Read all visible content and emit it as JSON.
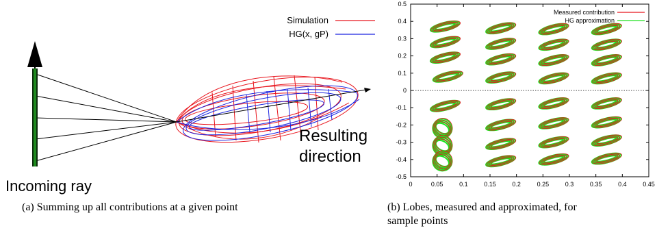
{
  "figure_a": {
    "legend": [
      {
        "label": "Simulation",
        "color": "#e8141c"
      },
      {
        "label": "HG(x, gP)",
        "color": "#1c24e0"
      }
    ],
    "incoming_label": "Incoming ray",
    "resulting_label_line1": "Resulting",
    "resulting_label_line2": "direction",
    "caption": "(a) Summing up all contributions at a given point"
  },
  "figure_b": {
    "caption_line1": "(b) Lobes, measured and approximated, for",
    "caption_line2": "sample points"
  },
  "chart_data": {
    "type": "scatter",
    "title": "",
    "xlabel": "",
    "ylabel": "",
    "xlim": [
      0,
      0.45
    ],
    "ylim": [
      -0.5,
      0.5
    ],
    "xticks": [
      0,
      0.05,
      0.1,
      0.15,
      0.2,
      0.25,
      0.3,
      0.35,
      0.4,
      0.45
    ],
    "yticks": [
      0.5,
      0.4,
      0.3,
      0.2,
      0.1,
      0,
      -0.1,
      -0.2,
      -0.3,
      -0.4,
      -0.5
    ],
    "xtick_labels": [
      "0",
      "0.05",
      "0.1",
      "0.15",
      "0.2",
      "0.25",
      "0.3",
      "0.35",
      "0.4",
      "0.45"
    ],
    "ytick_labels": [
      "0.5",
      "0.4",
      "0.3",
      "0.2",
      "0.1",
      "0",
      "-0.1",
      "-0.2",
      "-0.3",
      "-0.4",
      "-0.5"
    ],
    "zero_line": true,
    "legend_position": "top-right",
    "series": [
      {
        "name": "Measured contribution",
        "color": "#e8141c"
      },
      {
        "name": "HG approximation",
        "color": "#1fe01f"
      }
    ],
    "lobes": [
      {
        "x": 0.065,
        "y": 0.37
      },
      {
        "x": 0.065,
        "y": 0.28
      },
      {
        "x": 0.065,
        "y": 0.19
      },
      {
        "x": 0.07,
        "y": 0.08
      },
      {
        "x": 0.17,
        "y": 0.36
      },
      {
        "x": 0.17,
        "y": 0.27
      },
      {
        "x": 0.17,
        "y": 0.18
      },
      {
        "x": 0.17,
        "y": 0.075
      },
      {
        "x": 0.27,
        "y": 0.355
      },
      {
        "x": 0.27,
        "y": 0.265
      },
      {
        "x": 0.27,
        "y": 0.175
      },
      {
        "x": 0.27,
        "y": 0.07
      },
      {
        "x": 0.37,
        "y": 0.355
      },
      {
        "x": 0.37,
        "y": 0.265
      },
      {
        "x": 0.37,
        "y": 0.175
      },
      {
        "x": 0.37,
        "y": 0.07
      },
      {
        "x": 0.065,
        "y": -0.09
      },
      {
        "x": 0.17,
        "y": -0.08
      },
      {
        "x": 0.27,
        "y": -0.075
      },
      {
        "x": 0.37,
        "y": -0.075
      },
      {
        "x": 0.17,
        "y": -0.2
      },
      {
        "x": 0.27,
        "y": -0.19
      },
      {
        "x": 0.37,
        "y": -0.185
      },
      {
        "x": 0.17,
        "y": -0.31
      },
      {
        "x": 0.27,
        "y": -0.3
      },
      {
        "x": 0.37,
        "y": -0.29
      },
      {
        "x": 0.17,
        "y": -0.41
      },
      {
        "x": 0.27,
        "y": -0.4
      },
      {
        "x": 0.37,
        "y": -0.395
      },
      {
        "x": 0.06,
        "y": -0.22
      },
      {
        "x": 0.06,
        "y": -0.32
      },
      {
        "x": 0.06,
        "y": -0.41
      }
    ]
  }
}
